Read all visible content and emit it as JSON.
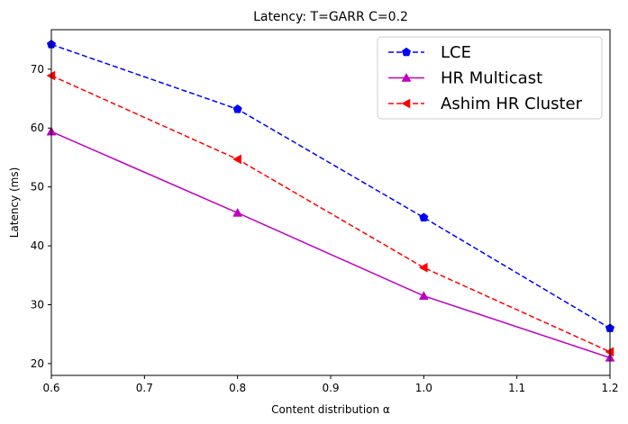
{
  "chart_data": {
    "type": "line",
    "title": "Latency: T=GARR C=0.2",
    "xlabel": "Content distribution α",
    "ylabel": "Latency (ms)",
    "xlim": [
      0.6,
      1.2
    ],
    "ylim": [
      18,
      76.7
    ],
    "xticks": [
      0.6,
      0.7,
      0.8,
      0.9,
      1.0,
      1.1,
      1.2
    ],
    "xtick_labels": [
      "0.6",
      "0.7",
      "0.8",
      "0.9",
      "1.0",
      "1.1",
      "1.2"
    ],
    "yticks": [
      20,
      30,
      40,
      50,
      60,
      70
    ],
    "ytick_labels": [
      "20",
      "30",
      "40",
      "50",
      "60",
      "70"
    ],
    "grid": false,
    "legend_position": "top-right",
    "x": [
      0.6,
      0.8,
      1.0,
      1.2
    ],
    "series": [
      {
        "name": "LCE",
        "values": [
          74.2,
          63.2,
          44.8,
          26.0
        ],
        "color": "#0000ff",
        "dash": "dashed",
        "marker": "pentagon"
      },
      {
        "name": "HR Multicast",
        "values": [
          59.4,
          45.6,
          31.5,
          21.0
        ],
        "color": "#bf00bf",
        "dash": "solid",
        "marker": "triangle-up"
      },
      {
        "name": "Ashim HR Cluster",
        "values": [
          68.9,
          54.7,
          36.3,
          22.0
        ],
        "color": "#ff0000",
        "dash": "dashed",
        "marker": "triangle-left"
      }
    ]
  }
}
